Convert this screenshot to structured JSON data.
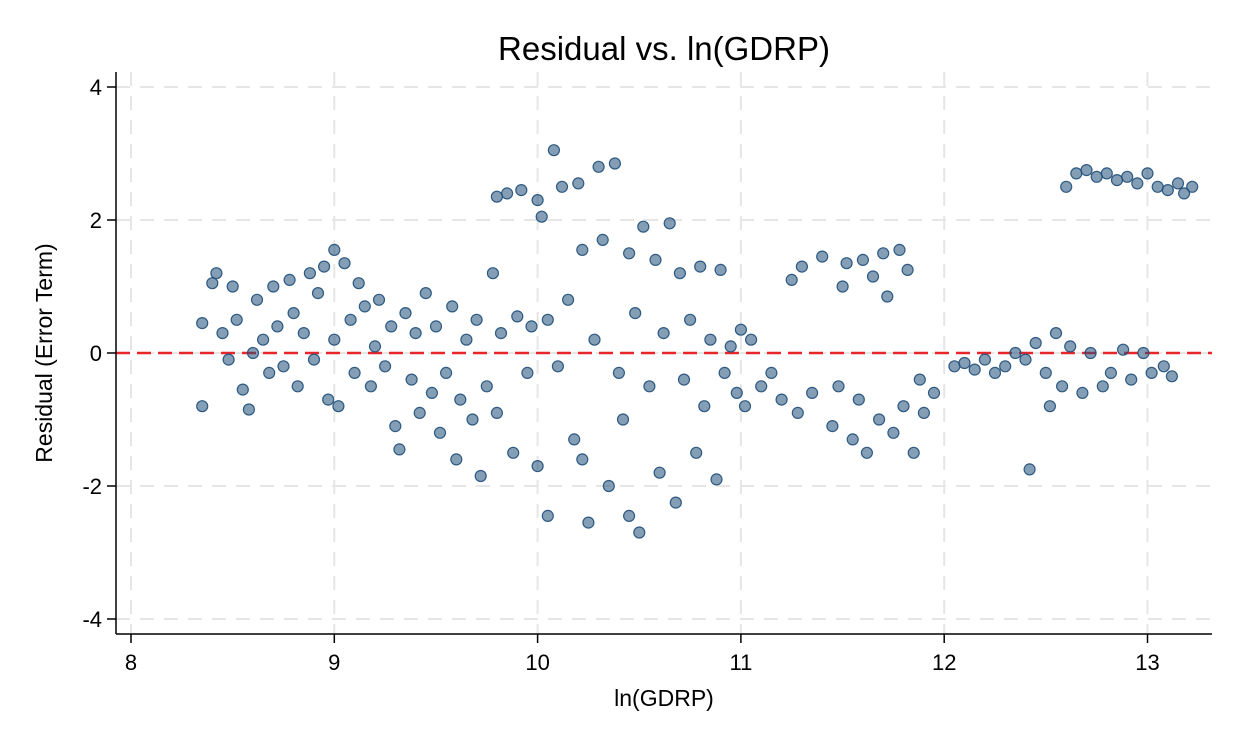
{
  "chart_data": {
    "type": "scatter",
    "title": "Residual vs. ln(GDRP)",
    "xlabel": "ln(GDRP)",
    "ylabel": "Residual (Error Term)",
    "xlim": [
      8,
      13.3
    ],
    "ylim": [
      -4.2,
      4.2
    ],
    "xticks": [
      8,
      9,
      10,
      11,
      12,
      13
    ],
    "yticks": [
      -4,
      -2,
      0,
      2,
      4
    ],
    "xtick_labels": [
      "8",
      "9",
      "10",
      "11",
      "12",
      "13"
    ],
    "ytick_labels": [
      "-4",
      "-2",
      "0",
      "2",
      "4"
    ],
    "grid": true,
    "reference_line": {
      "y": 0,
      "style": "dashed",
      "color": "#e8262a"
    },
    "marker_color": "#1f4e79",
    "series": [
      {
        "points": [
          [
            8.35,
            -0.8
          ],
          [
            8.35,
            0.45
          ],
          [
            8.4,
            1.05
          ],
          [
            8.42,
            1.2
          ],
          [
            8.45,
            0.3
          ],
          [
            8.48,
            -0.1
          ],
          [
            8.5,
            1.0
          ],
          [
            8.52,
            0.5
          ],
          [
            8.55,
            -0.55
          ],
          [
            8.58,
            -0.85
          ],
          [
            8.6,
            0.0
          ],
          [
            8.62,
            0.8
          ],
          [
            8.65,
            0.2
          ],
          [
            8.68,
            -0.3
          ],
          [
            8.7,
            1.0
          ],
          [
            8.72,
            0.4
          ],
          [
            8.75,
            -0.2
          ],
          [
            8.78,
            1.1
          ],
          [
            8.8,
            0.6
          ],
          [
            8.82,
            -0.5
          ],
          [
            8.85,
            0.3
          ],
          [
            8.88,
            1.2
          ],
          [
            8.9,
            -0.1
          ],
          [
            8.92,
            0.9
          ],
          [
            8.95,
            1.3
          ],
          [
            8.97,
            -0.7
          ],
          [
            9.0,
            1.55
          ],
          [
            9.0,
            0.2
          ],
          [
            9.02,
            -0.8
          ],
          [
            9.05,
            1.35
          ],
          [
            9.08,
            0.5
          ],
          [
            9.1,
            -0.3
          ],
          [
            9.12,
            1.05
          ],
          [
            9.15,
            0.7
          ],
          [
            9.18,
            -0.5
          ],
          [
            9.2,
            0.1
          ],
          [
            9.22,
            0.8
          ],
          [
            9.25,
            -0.2
          ],
          [
            9.28,
            0.4
          ],
          [
            9.3,
            -1.1
          ],
          [
            9.32,
            -1.45
          ],
          [
            9.35,
            0.6
          ],
          [
            9.38,
            -0.4
          ],
          [
            9.4,
            0.3
          ],
          [
            9.42,
            -0.9
          ],
          [
            9.45,
            0.9
          ],
          [
            9.48,
            -0.6
          ],
          [
            9.5,
            0.4
          ],
          [
            9.52,
            -1.2
          ],
          [
            9.55,
            -0.3
          ],
          [
            9.58,
            0.7
          ],
          [
            9.6,
            -1.6
          ],
          [
            9.62,
            -0.7
          ],
          [
            9.65,
            0.2
          ],
          [
            9.68,
            -1.0
          ],
          [
            9.7,
            0.5
          ],
          [
            9.72,
            -1.85
          ],
          [
            9.75,
            -0.5
          ],
          [
            9.78,
            1.2
          ],
          [
            9.8,
            -0.9
          ],
          [
            9.8,
            2.35
          ],
          [
            9.82,
            0.3
          ],
          [
            9.85,
            2.4
          ],
          [
            9.88,
            -1.5
          ],
          [
            9.9,
            0.55
          ],
          [
            9.92,
            2.45
          ],
          [
            9.95,
            -0.3
          ],
          [
            9.97,
            0.4
          ],
          [
            10.0,
            2.3
          ],
          [
            10.0,
            -1.7
          ],
          [
            10.02,
            2.05
          ],
          [
            10.05,
            0.5
          ],
          [
            10.05,
            -2.45
          ],
          [
            10.08,
            3.05
          ],
          [
            10.1,
            -0.2
          ],
          [
            10.12,
            2.5
          ],
          [
            10.15,
            0.8
          ],
          [
            10.18,
            -1.3
          ],
          [
            10.2,
            2.55
          ],
          [
            10.22,
            1.55
          ],
          [
            10.22,
            -1.6
          ],
          [
            10.25,
            -2.55
          ],
          [
            10.28,
            0.2
          ],
          [
            10.3,
            2.8
          ],
          [
            10.32,
            1.7
          ],
          [
            10.35,
            -2.0
          ],
          [
            10.38,
            2.85
          ],
          [
            10.4,
            -0.3
          ],
          [
            10.42,
            -1.0
          ],
          [
            10.45,
            1.5
          ],
          [
            10.45,
            -2.45
          ],
          [
            10.48,
            0.6
          ],
          [
            10.5,
            -2.7
          ],
          [
            10.52,
            1.9
          ],
          [
            10.55,
            -0.5
          ],
          [
            10.58,
            1.4
          ],
          [
            10.6,
            -1.8
          ],
          [
            10.62,
            0.3
          ],
          [
            10.65,
            1.95
          ],
          [
            10.68,
            -2.25
          ],
          [
            10.7,
            1.2
          ],
          [
            10.72,
            -0.4
          ],
          [
            10.75,
            0.5
          ],
          [
            10.78,
            -1.5
          ],
          [
            10.8,
            1.3
          ],
          [
            10.82,
            -0.8
          ],
          [
            10.85,
            0.2
          ],
          [
            10.88,
            -1.9
          ],
          [
            10.9,
            1.25
          ],
          [
            10.92,
            -0.3
          ],
          [
            10.95,
            0.1
          ],
          [
            10.98,
            -0.6
          ],
          [
            11.0,
            0.35
          ],
          [
            11.02,
            -0.8
          ],
          [
            11.05,
            0.2
          ],
          [
            11.1,
            -0.5
          ],
          [
            11.15,
            -0.3
          ],
          [
            11.2,
            -0.7
          ],
          [
            11.25,
            1.1
          ],
          [
            11.28,
            -0.9
          ],
          [
            11.3,
            1.3
          ],
          [
            11.35,
            -0.6
          ],
          [
            11.4,
            1.45
          ],
          [
            11.45,
            -1.1
          ],
          [
            11.48,
            -0.5
          ],
          [
            11.5,
            1.0
          ],
          [
            11.52,
            1.35
          ],
          [
            11.55,
            -1.3
          ],
          [
            11.58,
            -0.7
          ],
          [
            11.6,
            1.4
          ],
          [
            11.62,
            -1.5
          ],
          [
            11.65,
            1.15
          ],
          [
            11.68,
            -1.0
          ],
          [
            11.7,
            1.5
          ],
          [
            11.72,
            0.85
          ],
          [
            11.75,
            -1.2
          ],
          [
            11.78,
            1.55
          ],
          [
            11.8,
            -0.8
          ],
          [
            11.82,
            1.25
          ],
          [
            11.85,
            -1.5
          ],
          [
            11.88,
            -0.4
          ],
          [
            11.9,
            -0.9
          ],
          [
            11.95,
            -0.6
          ],
          [
            12.05,
            -0.2
          ],
          [
            12.1,
            -0.15
          ],
          [
            12.15,
            -0.25
          ],
          [
            12.2,
            -0.1
          ],
          [
            12.25,
            -0.3
          ],
          [
            12.3,
            -0.2
          ],
          [
            12.35,
            0.0
          ],
          [
            12.4,
            -0.1
          ],
          [
            12.42,
            -1.75
          ],
          [
            12.45,
            0.15
          ],
          [
            12.5,
            -0.3
          ],
          [
            12.52,
            -0.8
          ],
          [
            12.55,
            0.3
          ],
          [
            12.58,
            -0.5
          ],
          [
            12.6,
            2.5
          ],
          [
            12.62,
            0.1
          ],
          [
            12.65,
            2.7
          ],
          [
            12.68,
            -0.6
          ],
          [
            12.7,
            2.75
          ],
          [
            12.72,
            0.0
          ],
          [
            12.75,
            2.65
          ],
          [
            12.78,
            -0.5
          ],
          [
            12.8,
            2.7
          ],
          [
            12.82,
            -0.3
          ],
          [
            12.85,
            2.6
          ],
          [
            12.88,
            0.05
          ],
          [
            12.9,
            2.65
          ],
          [
            12.92,
            -0.4
          ],
          [
            12.95,
            2.55
          ],
          [
            12.98,
            0.0
          ],
          [
            13.0,
            2.7
          ],
          [
            13.02,
            -0.3
          ],
          [
            13.05,
            2.5
          ],
          [
            13.08,
            -0.2
          ],
          [
            13.1,
            2.45
          ],
          [
            13.12,
            -0.35
          ],
          [
            13.15,
            2.55
          ],
          [
            13.18,
            2.4
          ],
          [
            13.22,
            2.5
          ]
        ]
      }
    ]
  }
}
